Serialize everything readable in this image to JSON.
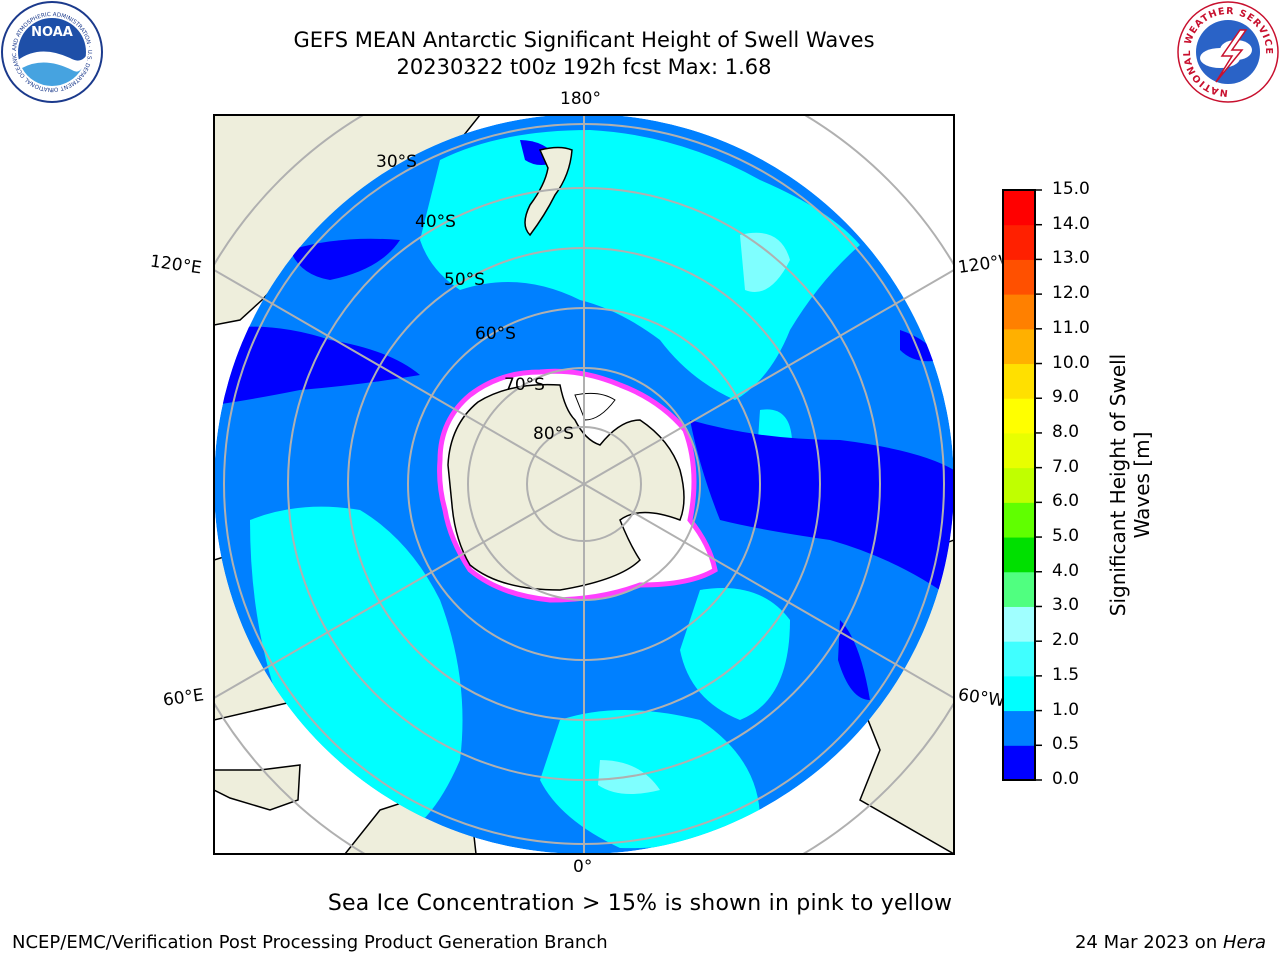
{
  "header": {
    "title_line1": "GEFS MEAN Antarctic Significant Height of Swell Waves",
    "title_line2": "20230322 t00z 192h fcst   Max: 1.68"
  },
  "logos": {
    "left": "NOAA",
    "left_ring_text": "NATIONAL OCEANIC AND ATMOSPHERIC ADMINISTRATION · U.S. DEPARTMENT OF COMMERCE",
    "right_ring_text": "NATIONAL WEATHER SERVICE"
  },
  "map": {
    "projection": "south-polar-stereographic",
    "longitude_labels": {
      "top": "180°",
      "bottom": "0°",
      "left_upper": "120°E",
      "left_lower": "60°E",
      "right_upper": "120°W",
      "right_lower": "60°W"
    },
    "latitude_labels": [
      "30°S",
      "40°S",
      "50°S",
      "60°S",
      "70°S",
      "80°S"
    ]
  },
  "colorbar": {
    "title_line1": "Significant Height of Swell",
    "title_line2": "Waves [m]",
    "ticks": [
      "0.0",
      "0.5",
      "1.0",
      "1.5",
      "2.0",
      "3.0",
      "4.0",
      "5.0",
      "6.0",
      "7.0",
      "8.0",
      "9.0",
      "10.0",
      "11.0",
      "12.0",
      "13.0",
      "14.0",
      "15.0"
    ],
    "colors": [
      "#0000ff",
      "#0080ff",
      "#00ffff",
      "#40ffff",
      "#a0ffff",
      "#50ff80",
      "#00e000",
      "#60ff00",
      "#c0ff00",
      "#e8ff00",
      "#ffff00",
      "#ffe000",
      "#ffb000",
      "#ff8000",
      "#ff5000",
      "#ff2000",
      "#ff0000"
    ]
  },
  "note": "Sea Ice Concentration > 15% is shown in pink to yellow",
  "footer": {
    "left": "NCEP/EMC/Verification Post Processing Product Generation Branch",
    "right_date": "24 Mar 2023 on ",
    "right_machine": "Hera"
  }
}
